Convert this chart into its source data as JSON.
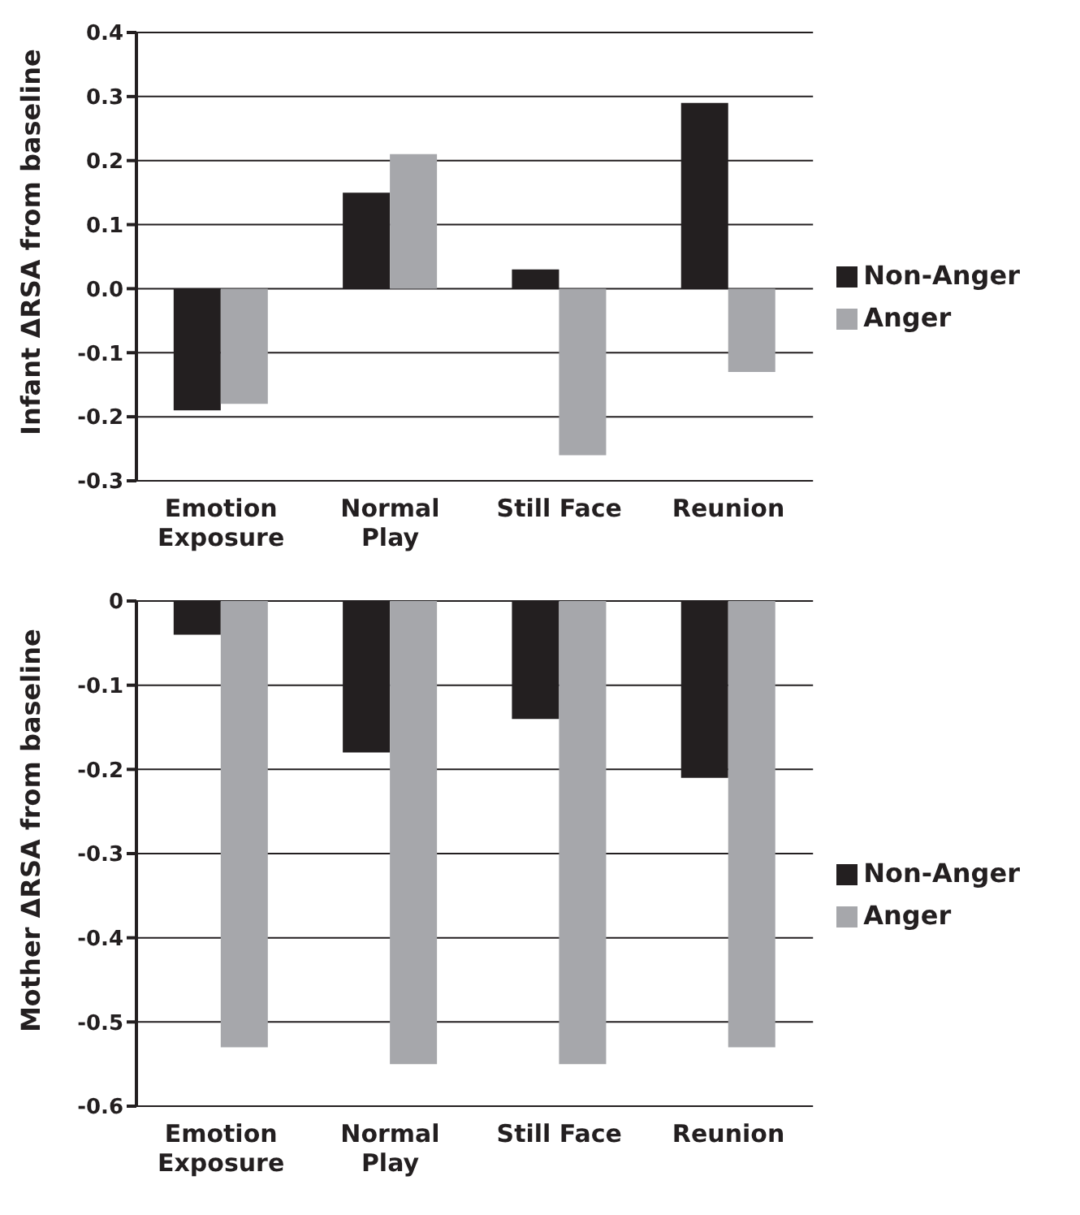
{
  "chart_data": [
    {
      "type": "bar",
      "ylabel": "Infant ΔRSA from baseline",
      "categories": [
        "Emotion Exposure",
        "Normal Play",
        "Still Face",
        "Reunion"
      ],
      "series": [
        {
          "name": "Non-Anger",
          "color": "#231f20",
          "values": [
            -0.19,
            0.15,
            0.03,
            0.29
          ]
        },
        {
          "name": "Anger",
          "color": "#a6a7ab",
          "values": [
            -0.18,
            0.21,
            -0.26,
            -0.13
          ]
        }
      ],
      "ylim": [
        -0.3,
        0.4
      ],
      "yticks": [
        -0.3,
        -0.2,
        -0.1,
        {
          "value": 0,
          "label": "0.0"
        },
        0.1,
        0.2,
        0.3,
        0.4
      ],
      "grid": "y",
      "legend": "right"
    },
    {
      "type": "bar",
      "ylabel": "Mother ΔRSA from baseline",
      "categories": [
        "Emotion Exposure",
        "Normal Play",
        "Still Face",
        "Reunion"
      ],
      "series": [
        {
          "name": "Non-Anger",
          "color": "#231f20",
          "values": [
            -0.04,
            -0.18,
            -0.14,
            -0.21
          ]
        },
        {
          "name": "Anger",
          "color": "#a6a7ab",
          "values": [
            -0.53,
            -0.55,
            -0.55,
            -0.53
          ]
        }
      ],
      "ylim": [
        -0.6,
        0
      ],
      "yticks": [
        -0.6,
        -0.5,
        -0.4,
        -0.3,
        -0.2,
        -0.1,
        0
      ],
      "grid": "y",
      "legend": "right"
    }
  ]
}
